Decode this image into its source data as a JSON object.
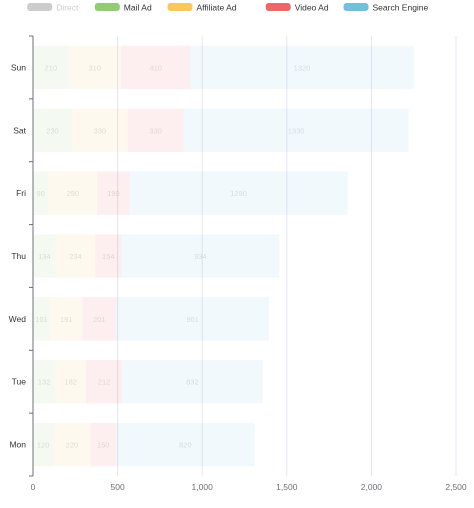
{
  "chart_data": {
    "type": "bar",
    "orientation": "horizontal",
    "stacked": true,
    "categories": [
      "Mon",
      "Tue",
      "Wed",
      "Thu",
      "Fri",
      "Sat",
      "Sun"
    ],
    "series": [
      {
        "name": "Direct",
        "values": [
          0,
          0,
          0,
          0,
          0,
          0,
          0
        ],
        "color": "#cccccc",
        "legend_disabled": true,
        "labels": []
      },
      {
        "name": "Mail Ad",
        "values": [
          120,
          132,
          101,
          134,
          90,
          230,
          210
        ],
        "color": "#91cc75"
      },
      {
        "name": "Affiliate Ad",
        "values": [
          220,
          182,
          191,
          234,
          290,
          330,
          310
        ],
        "color": "#fac858"
      },
      {
        "name": "Video Ad",
        "values": [
          150,
          212,
          201,
          154,
          190,
          330,
          410
        ],
        "color": "#ee6666"
      },
      {
        "name": "Search Engine",
        "values": [
          820,
          832,
          901,
          934,
          1290,
          1330,
          1320
        ],
        "color": "#73c0de"
      }
    ],
    "xlim": [
      0,
      2500
    ],
    "x_ticks": [
      0,
      500,
      1000,
      1500,
      2000,
      2500
    ],
    "x_tick_labels": [
      "0",
      "500",
      "1,000",
      "1,500",
      "2,000",
      "2,500"
    ],
    "legend_position": "top-center",
    "grid": true,
    "bar_fill_opacity": 0.1
  }
}
